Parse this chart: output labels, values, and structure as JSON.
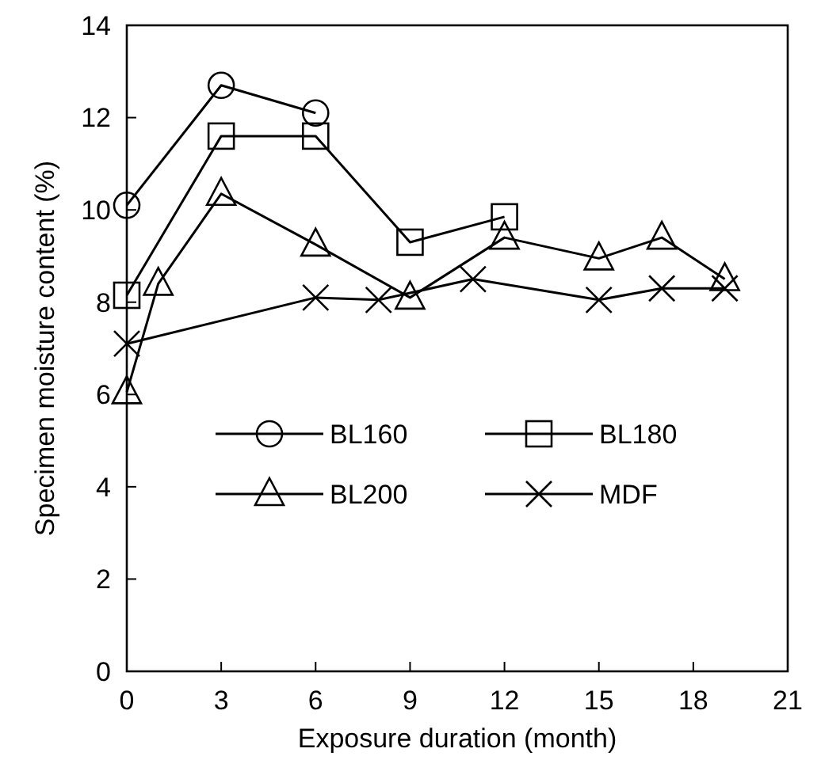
{
  "chart_data": {
    "type": "line",
    "xlabel": "Exposure duration (month)",
    "ylabel": "Specimen moisture content (%)",
    "xlim": [
      0,
      21
    ],
    "xticks": [
      0,
      3,
      6,
      9,
      12,
      15,
      18,
      21
    ],
    "ylim": [
      0,
      14
    ],
    "yticks": [
      0,
      2,
      4,
      6,
      8,
      10,
      12,
      14
    ],
    "grid": false,
    "legend": "bottom",
    "line_style": "solid",
    "series": [
      {
        "name": "BL160",
        "color": "#000000",
        "marker": "circle",
        "x": [
          0,
          3,
          6
        ],
        "values": [
          10.1,
          12.7,
          12.1
        ]
      },
      {
        "name": "BL180",
        "color": "#000000",
        "marker": "square",
        "x": [
          0,
          3,
          6,
          9,
          12
        ],
        "values": [
          8.15,
          11.6,
          11.6,
          9.3,
          9.85
        ]
      },
      {
        "name": "BL200",
        "color": "#000000",
        "marker": "triangle",
        "x": [
          0,
          1,
          3,
          6,
          9,
          12,
          15,
          17,
          19
        ],
        "values": [
          6.05,
          8.4,
          10.35,
          9.25,
          8.1,
          9.4,
          8.95,
          9.4,
          8.5
        ]
      },
      {
        "name": "MDF",
        "color": "#000000",
        "marker": "cross",
        "x": [
          0,
          6,
          8,
          11,
          15,
          17,
          19
        ],
        "values": [
          7.1,
          8.1,
          8.05,
          8.5,
          8.05,
          8.3,
          8.3
        ]
      }
    ]
  }
}
